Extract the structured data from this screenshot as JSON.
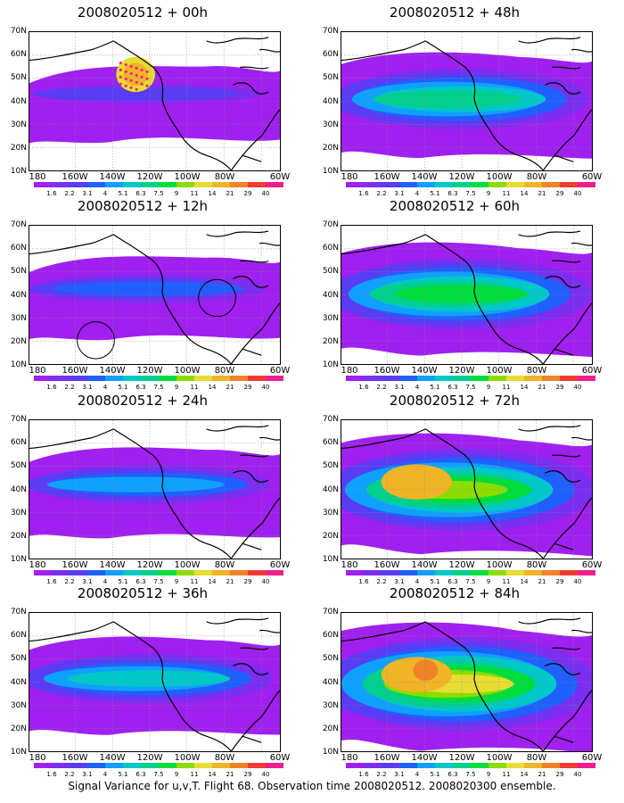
{
  "panels": [
    {
      "title": "2008020512 + 00h",
      "level": 0
    },
    {
      "title": "2008020512 + 48h",
      "level": 4
    },
    {
      "title": "2008020512 + 12h",
      "level": 1
    },
    {
      "title": "2008020512 + 60h",
      "level": 5
    },
    {
      "title": "2008020512 + 24h",
      "level": 2
    },
    {
      "title": "2008020512 + 72h",
      "level": 6
    },
    {
      "title": "2008020512 + 36h",
      "level": 3
    },
    {
      "title": "2008020512 + 84h",
      "level": 7
    }
  ],
  "lat_labels": [
    "70N",
    "60N",
    "50N",
    "40N",
    "30N",
    "20N",
    "10N"
  ],
  "lon_labels": [
    "180",
    "160W",
    "140W",
    "120W",
    "100W",
    "80W",
    "60W"
  ],
  "colorbar": {
    "labels": [
      "1.6",
      "2.2",
      "3.1",
      "4",
      "5.1",
      "6.3",
      "7.5",
      "9",
      "11",
      "14",
      "21",
      "29",
      "40"
    ],
    "colors": [
      "#a020f0",
      "#7b2ff0",
      "#5a3cf5",
      "#2060ff",
      "#10a0ff",
      "#00c8c8",
      "#00d08c",
      "#00dc3c",
      "#8cdc00",
      "#e6dc32",
      "#f0b428",
      "#f08228",
      "#f03c32",
      "#f01e8c"
    ]
  },
  "caption": "Signal Variance for u,v,T. Flight 68. Observation time 2008020512. 2008020300 ensemble."
}
